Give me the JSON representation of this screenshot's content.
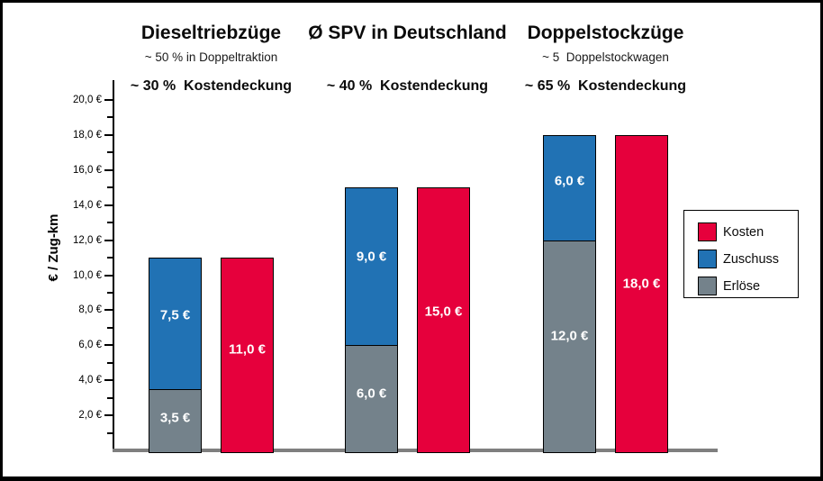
{
  "chart_data": {
    "type": "bar",
    "title": "",
    "ylabel": "€ / Zug-km",
    "ylim": [
      0,
      20
    ],
    "grid": false,
    "legend_position": "right",
    "categories": [
      "Dieseltriebzüge",
      "Ø SPV in Deutschland",
      "Doppelstockzüge"
    ],
    "group_headers": [
      {
        "title": "Dieseltriebzüge",
        "subtitle": "~ 50 % in Doppeltraktion",
        "coverage": "~ 30 %  Kostendeckung"
      },
      {
        "title": "Ø SPV in Deutschland",
        "subtitle": "",
        "coverage": "~ 40 %  Kostendeckung"
      },
      {
        "title": "Doppelstockzüge",
        "subtitle": "~ 5  Doppelstockwagen",
        "coverage": "~ 65 %  Kostendeckung"
      }
    ],
    "series": [
      {
        "name": "Erlöse",
        "stack": "A",
        "color": "#74828B",
        "values": [
          3.5,
          6.0,
          12.0
        ],
        "labels": [
          "3,5 €",
          "6,0 €",
          "12,0 €"
        ]
      },
      {
        "name": "Zuschuss",
        "stack": "A",
        "color": "#2172B4",
        "values": [
          7.5,
          9.0,
          6.0
        ],
        "labels": [
          "7,5 €",
          "9,0 €",
          "6,0 €"
        ]
      },
      {
        "name": "Kosten",
        "stack": "B",
        "color": "#E6003C",
        "values": [
          11.0,
          15.0,
          18.0
        ],
        "labels": [
          "11,0 €",
          "15,0 €",
          "18,0 €"
        ]
      }
    ],
    "yticks": [
      {
        "value": 2,
        "label": "2,0 €"
      },
      {
        "value": 4,
        "label": "4,0 €"
      },
      {
        "value": 6,
        "label": "6,0 €"
      },
      {
        "value": 8,
        "label": "8,0 €"
      },
      {
        "value": 10,
        "label": "10,0 €"
      },
      {
        "value": 12,
        "label": "12,0 €"
      },
      {
        "value": 14,
        "label": "14,0 €"
      },
      {
        "value": 16,
        "label": "16,0 €"
      },
      {
        "value": 18,
        "label": "18,0 €"
      },
      {
        "value": 20,
        "label": "20,0 €"
      }
    ],
    "yticks_minor": [
      1,
      3,
      5,
      7,
      9,
      11,
      13,
      15,
      17,
      19
    ],
    "legend": [
      "Kosten",
      "Zuschuss",
      "Erlöse"
    ]
  },
  "colors": {
    "kosten": "#E6003C",
    "zuschuss": "#2172B4",
    "erloese": "#74828B",
    "axis": "#000000",
    "baseline": "#7F7F7F"
  }
}
